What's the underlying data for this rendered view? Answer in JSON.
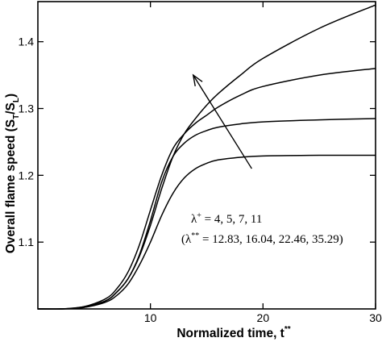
{
  "chart_data": {
    "type": "line",
    "xlabel": "Normalized time, t",
    "xlabel_sup": "**",
    "ylabel": "Overall flame speed (S",
    "ylabel_sub1": "T",
    "ylabel_mid": "/S",
    "ylabel_sub2": "L",
    "ylabel_end": ")",
    "xlim": [
      0,
      30
    ],
    "ylim": [
      1.0,
      1.46
    ],
    "xticks": [
      10,
      20,
      30
    ],
    "yticks": [
      1.1,
      1.2,
      1.3,
      1.4
    ],
    "grid": false,
    "legend": "none",
    "series": [
      {
        "x": [
          0,
          2,
          4,
          6,
          7,
          8,
          9,
          10,
          11,
          12,
          13,
          14,
          15,
          16,
          18,
          20,
          25,
          30
        ],
        "y": [
          1.0,
          1.0,
          1.002,
          1.012,
          1.025,
          1.045,
          1.078,
          1.125,
          1.18,
          1.228,
          1.262,
          1.285,
          1.305,
          1.322,
          1.35,
          1.375,
          1.42,
          1.455
        ]
      },
      {
        "x": [
          0,
          2,
          4,
          6,
          7,
          8,
          9,
          10,
          11,
          12,
          13,
          14,
          15,
          16,
          18,
          20,
          25,
          30
        ],
        "y": [
          1.0,
          1.0,
          1.003,
          1.015,
          1.03,
          1.055,
          1.095,
          1.148,
          1.2,
          1.24,
          1.262,
          1.278,
          1.29,
          1.302,
          1.32,
          1.333,
          1.35,
          1.36
        ]
      },
      {
        "x": [
          0,
          2,
          4,
          6,
          7,
          8,
          9,
          10,
          11,
          12,
          13,
          14,
          15,
          16,
          18,
          20,
          25,
          30
        ],
        "y": [
          1.0,
          1.0,
          1.003,
          1.012,
          1.025,
          1.045,
          1.08,
          1.132,
          1.19,
          1.228,
          1.248,
          1.26,
          1.267,
          1.272,
          1.277,
          1.28,
          1.283,
          1.285
        ]
      },
      {
        "x": [
          0,
          2,
          4,
          6,
          7,
          8,
          9,
          10,
          11,
          12,
          13,
          14,
          15,
          16,
          18,
          20,
          25,
          30
        ],
        "y": [
          1.0,
          1.0,
          1.002,
          1.01,
          1.02,
          1.037,
          1.065,
          1.1,
          1.14,
          1.173,
          1.196,
          1.21,
          1.218,
          1.223,
          1.227,
          1.229,
          1.23,
          1.23
        ]
      }
    ],
    "annotations": {
      "arrow_from": [
        19.0,
        1.21
      ],
      "arrow_to": [
        13.8,
        1.35
      ],
      "line1_main": "λ",
      "line1_sup": "+",
      "line1_rest": " = 4, 5, 7, 11",
      "line2_start": "(λ",
      "line2_sup": "**",
      "line2_rest": " = 12.83, 16.04, 22.46, 35.29)"
    }
  }
}
